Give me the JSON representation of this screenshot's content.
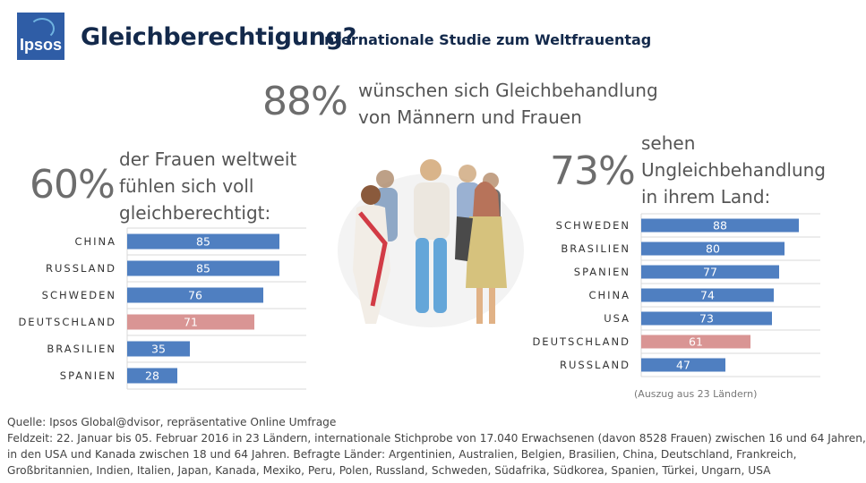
{
  "header": {
    "title": "Gleichberechtigung?",
    "subtitle": "Internationale Studie zum Weltfrauentag",
    "logo_text": "Ipsos"
  },
  "stats": {
    "global": {
      "pct": "88%",
      "line1": "wünschen sich Gleichbehandlung",
      "line2": "von Männern und Frauen"
    },
    "left": {
      "pct": "60%",
      "line1": "der Frauen weltweit",
      "line2": "fühlen sich voll",
      "line3": "gleichberechtigt:"
    },
    "right": {
      "pct": "73%",
      "line1": "sehen",
      "line2": "Ungleichbehandlung",
      "line3": "in ihrem Land:"
    }
  },
  "colors": {
    "bar": "#4f7fc1",
    "highlight": "#d99594",
    "grid": "#d9d9d9",
    "label": "#333333"
  },
  "chart_data": [
    {
      "type": "bar",
      "orientation": "horizontal",
      "categories": [
        "CHINA",
        "RUSSLAND",
        "SCHWEDEN",
        "DEUTSCHLAND",
        "BRASILIEN",
        "SPANIEN"
      ],
      "values": [
        85,
        85,
        76,
        71,
        35,
        28
      ],
      "highlight": "DEUTSCHLAND",
      "xlim": [
        0,
        100
      ]
    },
    {
      "type": "bar",
      "orientation": "horizontal",
      "categories": [
        "SCHWEDEN",
        "BRASILIEN",
        "SPANIEN",
        "CHINA",
        "USA",
        "DEUTSCHLAND",
        "RUSSLAND"
      ],
      "values": [
        88,
        80,
        77,
        74,
        73,
        61,
        47
      ],
      "highlight": "DEUTSCHLAND",
      "xlim": [
        0,
        100
      ]
    }
  ],
  "note": "(Auszug aus 23 Ländern)",
  "source": {
    "line1": "Quelle: Ipsos Global@dvisor, repräsentative Online Umfrage",
    "line2": "Feldzeit: 22. Januar bis 05. Februar 2016 in 23 Ländern, internationale Stichprobe von 17.040 Erwachsenen (davon 8528 Frauen) zwischen 16 und 64 Jahren,",
    "line3": "in den USA und Kanada zwischen 18 und 64 Jahren. Befragte Länder: Argentinien, Australien, Belgien, Brasilien, China, Deutschland, Frankreich,",
    "line4": "Großbritannien, Indien, Italien, Japan, Kanada, Mexiko, Peru, Polen, Russland, Schweden, Südafrika, Südkorea, Spanien, Türkei, Ungarn, USA"
  }
}
